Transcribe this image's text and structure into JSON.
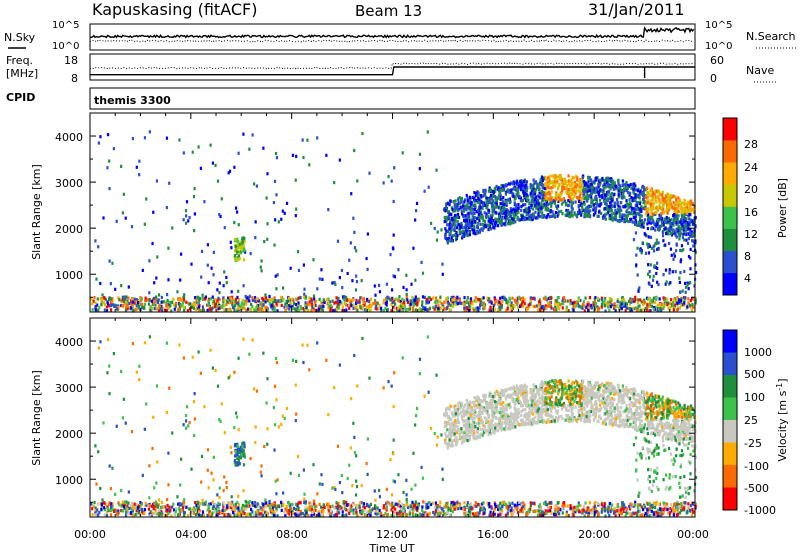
{
  "header": {
    "station": "Kapuskasing (fitACF)",
    "beam": "Beam 13",
    "date": "31/Jan/2011"
  },
  "noise_panel": {
    "left_label": "N.Sky",
    "left_ticks": [
      "10^5",
      "10^0"
    ],
    "right_ticks": [
      "10^5",
      "10^0"
    ],
    "right_label": "N.Search"
  },
  "freq_panel": {
    "left_label_1": "Freq.",
    "left_label_2": "[MHz]",
    "left_ticks": [
      "18",
      "8"
    ],
    "right_ticks": [
      "60",
      "0"
    ],
    "right_label": "Nave"
  },
  "cpid_panel": {
    "label": "CPID",
    "program": "themis 3300"
  },
  "colors": {
    "power": [
      "#0000ff",
      "#2a4fd0",
      "#1e8f3c",
      "#3cc24a",
      "#c8c800",
      "#ffaa00",
      "#ff6a00",
      "#ff0000"
    ],
    "velocity": [
      "#0000ff",
      "#2a4fd0",
      "#1e8f3c",
      "#3cc24a",
      "#c8c8c0",
      "#ffaa00",
      "#ff6a00",
      "#ff0000"
    ],
    "ground_scatter": "#c8c8c0"
  },
  "chart_data": [
    {
      "type": "heatmap",
      "title": "",
      "xlabel": "",
      "ylabel": "Slant Range [km]",
      "xlim": [
        0,
        24
      ],
      "ylim": [
        180,
        4500
      ],
      "y_ticks": [
        "4000",
        "3000",
        "2000",
        "1000"
      ],
      "colorbar_label": "Power [dB]",
      "colorbar_ticks": [
        "28",
        "24",
        "20",
        "16",
        "12",
        "8",
        "4"
      ],
      "colorbar_range": [
        0,
        30
      ],
      "features": [
        {
          "label": "near-range scatter",
          "t_start": 0.0,
          "t_end": 24.0,
          "range_min": 200,
          "range_max": 500
        },
        {
          "label": "patch near 06:00",
          "t_start": 5.7,
          "t_end": 6.1,
          "range_min": 1300,
          "range_max": 1800
        },
        {
          "label": "far-range scatter",
          "t_start": 14.0,
          "t_end": 24.0,
          "range_min": 1300,
          "range_max": 3400
        }
      ]
    },
    {
      "type": "heatmap",
      "title": "",
      "xlabel": "Time UT",
      "ylabel": "Slant Range [km]",
      "xlim": [
        0,
        24
      ],
      "ylim": [
        180,
        4500
      ],
      "x_ticks": [
        "00:00",
        "04:00",
        "08:00",
        "12:00",
        "16:00",
        "20:00",
        "00:00"
      ],
      "y_ticks": [
        "4000",
        "3000",
        "2000",
        "1000"
      ],
      "colorbar_label": "Velocity [m s",
      "colorbar_label_sup": "-1",
      "colorbar_label_end": "]",
      "colorbar_ticks": [
        "1000",
        "500",
        "100",
        "25",
        "-25",
        "-100",
        "-500",
        "-1000"
      ],
      "colorbar_range": [
        -1000,
        1000
      ]
    }
  ]
}
